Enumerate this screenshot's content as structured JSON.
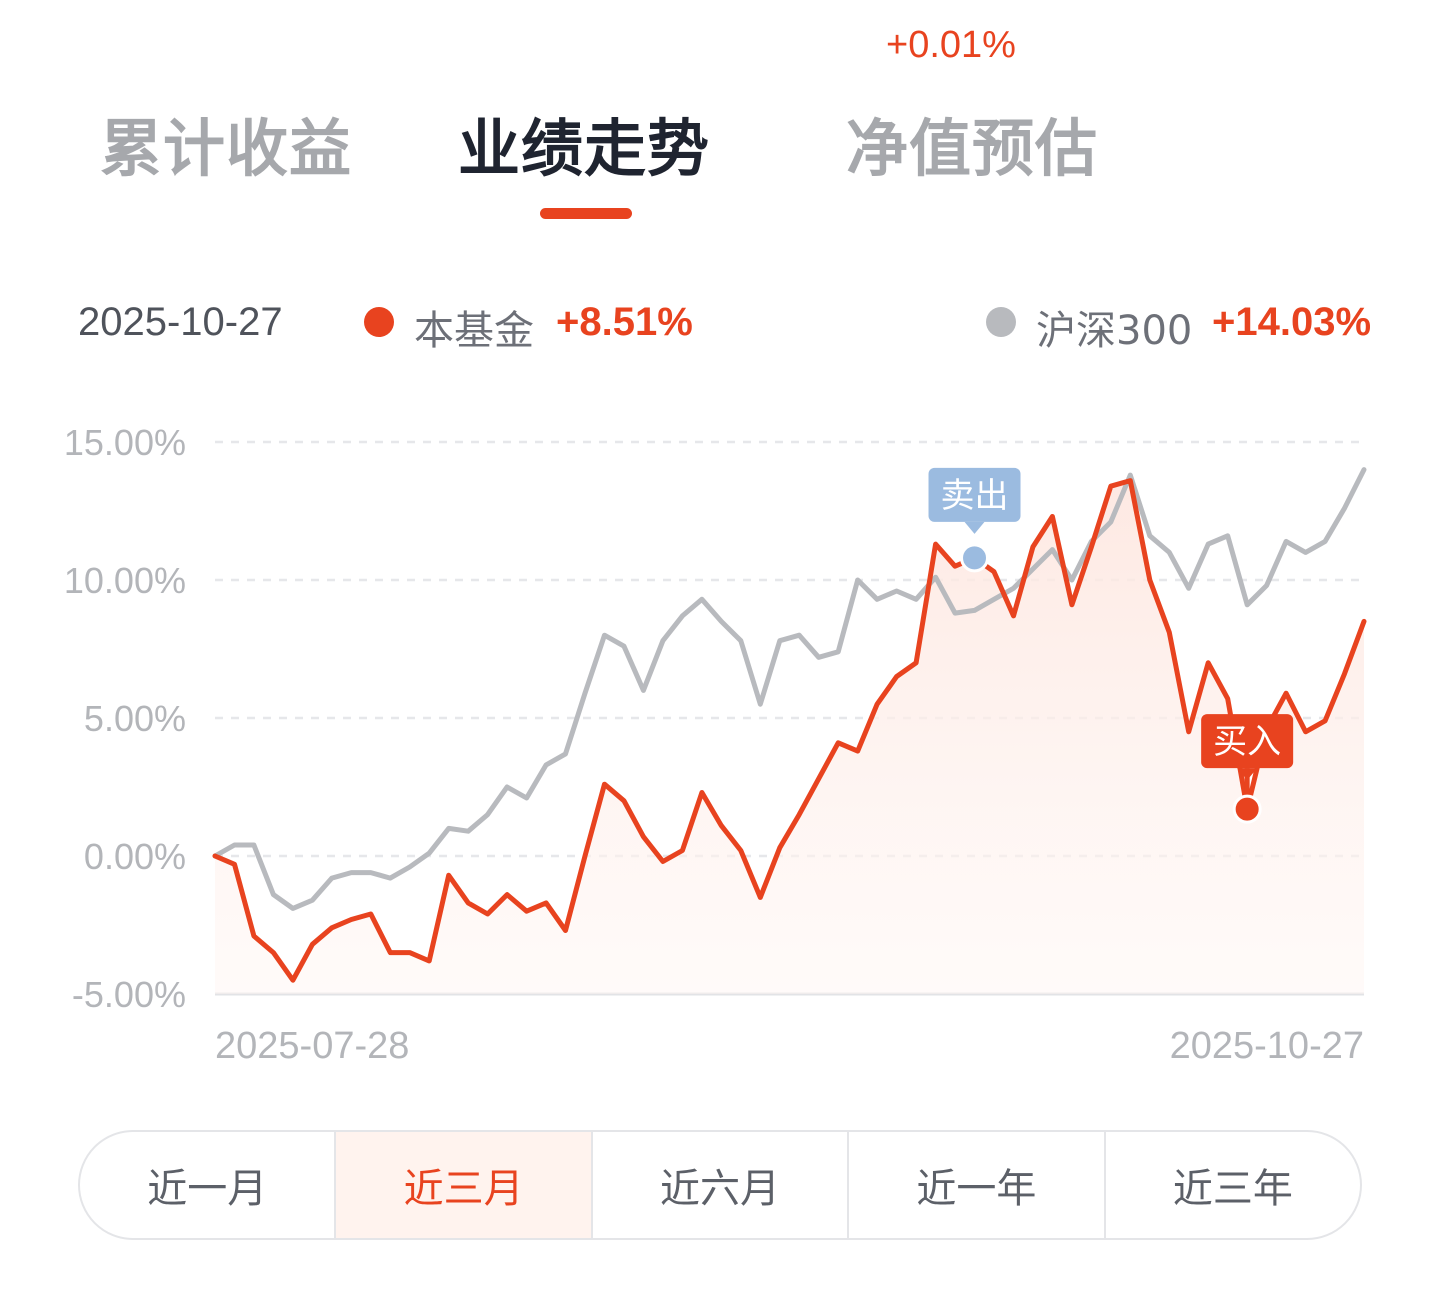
{
  "tabs": {
    "items": [
      {
        "label": "累计收益",
        "active": false
      },
      {
        "label": "业绩走势",
        "active": true
      },
      {
        "label": "净值预估",
        "active": false
      }
    ],
    "estimate_badge": "+0.01%"
  },
  "legend": {
    "date": "2025-10-27",
    "fund_name": "本基金",
    "fund_value": "+8.51%",
    "index_name": "沪深300",
    "index_value": "+14.03%"
  },
  "colors": {
    "fund": "#e8431f",
    "index": "#b8babe",
    "sell_marker": "#9bbbe0",
    "buy_marker": "#e8431f"
  },
  "chart_data": {
    "type": "line",
    "ylim": [
      -5,
      15
    ],
    "yticks": [
      "15.00%",
      "10.00%",
      "5.00%",
      "0.00%",
      "-5.00%"
    ],
    "x_labels": {
      "start": "2025-07-28",
      "end": "2025-10-27"
    },
    "grid": true,
    "series": [
      {
        "name": "本基金",
        "values": [
          0,
          -0.3,
          -2.9,
          -3.5,
          -4.5,
          -3.2,
          -2.6,
          -2.3,
          -2.1,
          -3.5,
          -3.5,
          -3.8,
          -0.7,
          -1.7,
          -2.1,
          -1.4,
          -2.0,
          -1.7,
          -2.7,
          0.0,
          2.6,
          2.0,
          0.7,
          -0.2,
          0.2,
          2.3,
          1.1,
          0.2,
          -1.5,
          0.3,
          1.5,
          2.8,
          4.1,
          3.8,
          5.5,
          6.5,
          7.0,
          11.3,
          10.5,
          10.8,
          10.3,
          8.7,
          11.2,
          12.3,
          9.1,
          11.2,
          13.4,
          13.6,
          10.0,
          8.1,
          4.5,
          7.0,
          5.7,
          1.7,
          4.6,
          5.9,
          4.5,
          4.9,
          6.6,
          8.5
        ]
      },
      {
        "name": "沪深300",
        "values": [
          0,
          0.4,
          0.4,
          -1.4,
          -1.9,
          -1.6,
          -0.8,
          -0.6,
          -0.6,
          -0.8,
          -0.4,
          0.1,
          1.0,
          0.9,
          1.5,
          2.5,
          2.1,
          3.3,
          3.7,
          5.9,
          8.0,
          7.6,
          6.0,
          7.8,
          8.7,
          9.3,
          8.5,
          7.8,
          5.5,
          7.8,
          8.0,
          7.2,
          7.4,
          10.0,
          9.3,
          9.6,
          9.3,
          10.1,
          8.8,
          8.9,
          9.3,
          9.7,
          10.4,
          11.1,
          10.0,
          11.4,
          12.1,
          13.8,
          11.6,
          11.0,
          9.7,
          11.3,
          11.6,
          9.1,
          9.8,
          11.4,
          11.0,
          11.4,
          12.6,
          14.0
        ]
      }
    ],
    "markers": [
      {
        "label": "卖出",
        "index": 39,
        "value": 10.8,
        "series": "本基金"
      },
      {
        "label": "买入",
        "index": 53,
        "value": 1.7,
        "series": "本基金"
      }
    ]
  },
  "ranges": [
    {
      "label": "近一月",
      "active": false
    },
    {
      "label": "近三月",
      "active": true
    },
    {
      "label": "近六月",
      "active": false
    },
    {
      "label": "近一年",
      "active": false
    },
    {
      "label": "近三年",
      "active": false
    }
  ]
}
